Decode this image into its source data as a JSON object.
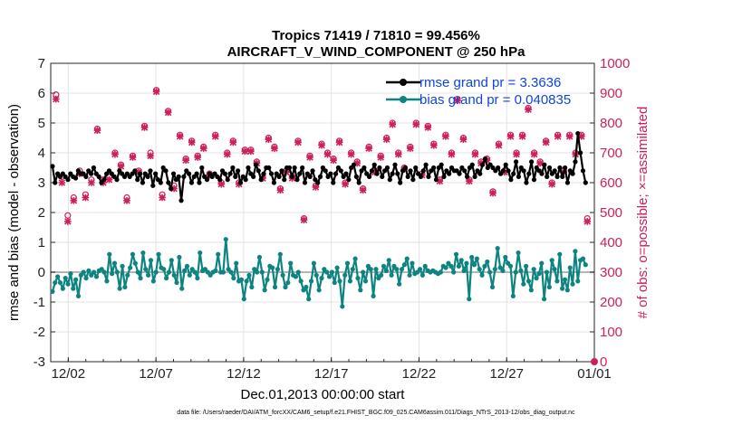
{
  "chart_data": {
    "type": "line",
    "title": "Tropics 71419 / 71810 = 99.456%",
    "subtitle": "AIRCRAFT_V_WIND_COMPONENT @ 250 hPa",
    "xlabel": "Dec.01,2013 00:00:00 start",
    "ylabel": "rmse and bias (model - observation)",
    "y2label": "# of obs: o=possible; ×=assimilated",
    "xlim": [
      0,
      31
    ],
    "ylim": [
      -3,
      7
    ],
    "y2lim": [
      0,
      1000
    ],
    "grid": true,
    "legend_position": "top-right",
    "x_ticks": [
      {
        "x": 1,
        "label": "12/02"
      },
      {
        "x": 6,
        "label": "12/07"
      },
      {
        "x": 11,
        "label": "12/12"
      },
      {
        "x": 16,
        "label": "12/17"
      },
      {
        "x": 21,
        "label": "12/22"
      },
      {
        "x": 26,
        "label": "12/27"
      },
      {
        "x": 31,
        "label": "01/01"
      }
    ],
    "y_ticks": [
      "-3",
      "-2",
      "-1",
      "0",
      "1",
      "2",
      "3",
      "4",
      "5",
      "6",
      "7"
    ],
    "y2_ticks": [
      "0",
      "100",
      "200",
      "300",
      "400",
      "500",
      "600",
      "700",
      "800",
      "900",
      "1000"
    ],
    "series": [
      {
        "name": "rmse grand pr = 3.3636",
        "color": "#000000",
        "values": [
          3.55,
          3.0,
          3.3,
          3.2,
          3.3,
          3.2,
          3.1,
          3.3,
          3.2,
          3.15,
          3.4,
          3.3,
          3.3,
          3.2,
          3.4,
          3.3,
          3.5,
          3.3,
          3.2,
          3.0,
          3.1,
          3.3,
          3.4,
          3.3,
          3.2,
          3.1,
          3.4,
          3.3,
          3.2,
          3.3,
          3.2,
          3.3,
          3.4,
          3.1,
          3.3,
          3.0,
          3.3,
          3.2,
          3.4,
          2.9,
          3.3,
          3.1,
          3.0,
          3.5,
          3.4,
          3.0,
          2.8,
          3.3,
          3.1,
          3.2,
          2.4,
          3.2,
          3.4,
          3.3,
          3.0,
          3.2,
          3.3,
          3.0,
          3.5,
          3.2,
          3.1,
          3.3,
          3.2,
          3.3,
          3.2,
          3.1,
          3.4,
          3.3,
          3.1,
          3.3,
          3.5,
          3.2,
          3.4,
          3.0,
          3.2,
          3.1,
          3.5,
          3.3,
          3.2,
          3.6,
          3.4,
          3.1,
          3.3,
          3.5,
          3.5,
          3.3,
          3.0,
          3.3,
          3.2,
          3.4,
          3.1,
          3.5,
          3.5,
          3.2,
          3.5,
          3.1,
          3.3,
          3.5,
          3.0,
          3.3,
          3.2,
          3.4,
          3.1,
          3.0,
          3.2,
          3.5,
          3.4,
          3.2,
          3.3,
          3.0,
          3.3,
          3.5,
          3.4,
          3.2,
          3.3,
          3.1,
          3.5,
          3.6,
          3.2,
          3.0,
          3.4,
          3.5,
          3.3,
          3.2,
          3.4,
          3.6,
          3.3,
          3.5,
          3.2,
          3.4,
          3.5,
          3.1,
          3.3,
          3.6,
          3.3,
          3.0,
          3.4,
          3.5,
          3.2,
          3.4,
          3.1,
          3.5,
          3.3,
          3.2,
          3.4,
          3.6,
          3.2,
          3.4,
          3.5,
          3.1,
          3.5,
          3.6,
          3.2,
          3.4,
          3.3,
          3.5,
          3.4,
          3.4,
          3.3,
          3.5,
          3.4,
          3.2,
          3.5,
          3.6,
          3.2,
          3.4,
          3.3,
          3.6,
          3.8,
          3.5,
          3.6,
          3.5,
          3.4,
          3.5,
          3.3,
          3.4,
          3.6,
          3.4,
          3.1,
          3.3,
          3.7,
          3.2,
          3.5,
          3.4,
          3.0,
          3.3,
          3.7,
          3.1,
          3.5,
          3.4,
          3.3,
          3.6,
          3.2,
          3.5,
          3.3,
          3.4,
          3.2,
          3.5,
          3.2,
          3.5,
          3.0,
          3.4,
          3.3,
          3.7,
          4.65,
          4.0,
          3.4,
          3.0
        ]
      },
      {
        "name": "bias grand pr = 0.040835",
        "color": "#0e8481",
        "values": [
          -0.65,
          -0.35,
          -0.15,
          -0.35,
          -0.55,
          -0.2,
          -0.4,
          -0.05,
          -0.55,
          -0.25,
          -0.8,
          -0.1,
          0.0,
          -0.2,
          0.05,
          -0.1,
          0.0,
          -0.15,
          0.05,
          0.1,
          0.0,
          -0.3,
          0.6,
          -0.05,
          0.3,
          0.0,
          -0.55,
          0.2,
          -0.5,
          -0.1,
          0.15,
          0.6,
          0.3,
          0.0,
          -0.2,
          0.65,
          0.1,
          -0.1,
          0.4,
          -0.3,
          0.0,
          0.6,
          0.15,
          0.1,
          -0.2,
          0.0,
          0.4,
          -0.1,
          -0.35,
          0.5,
          -0.55,
          0.05,
          0.2,
          -0.1,
          0.1,
          0.0,
          -0.2,
          0.65,
          0.05,
          0.1,
          0.0,
          -0.1,
          0.0,
          0.05,
          0.6,
          0.0,
          0.0,
          1.1,
          0.1,
          0.0,
          -0.2,
          0.3,
          -0.3,
          -0.25,
          -0.9,
          -0.3,
          -0.1,
          -0.5,
          0.1,
          0.0,
          0.5,
          0.0,
          -0.6,
          -0.25,
          0.2,
          0.15,
          -0.5,
          0.1,
          0.6,
          -0.1,
          -0.5,
          -0.35,
          0.3,
          -0.1,
          -0.15,
          0.0,
          -0.3,
          -0.6,
          -0.5,
          -0.9,
          -0.3,
          0.3,
          -0.1,
          -0.6,
          -0.2,
          0.1,
          0.0,
          -0.15,
          0.0,
          -0.35,
          0.15,
          -0.3,
          -1.15,
          -0.1,
          0.3,
          -0.3,
          0.1,
          0.45,
          -0.2,
          -0.6,
          0.0,
          -0.3,
          0.2,
          0.1,
          -0.8,
          0.1,
          -0.2,
          -0.1,
          0.2,
          0.05,
          0.4,
          -0.1,
          0.2,
          0.1,
          -0.4,
          0.1,
          0.25,
          0.45,
          -0.1,
          0.3,
          -0.05,
          0.0,
          0.1,
          -0.1,
          0.2,
          0.05,
          0.0,
          0.05,
          0.0,
          -0.05,
          0.0,
          0.2,
          0.15,
          0.3,
          0.2,
          0.0,
          0.6,
          0.2,
          0.4,
          0.05,
          0.3,
          -0.9,
          0.5,
          0.25,
          0.45,
          0.1,
          -0.1,
          0.2,
          0.35,
          0.0,
          -0.5,
          0.1,
          0.8,
          0.15,
          0.05,
          0.5,
          0.3,
          0.2,
          -0.8,
          0.0,
          0.65,
          0.05,
          -0.4,
          0.2,
          -0.3,
          -0.6,
          0.1,
          -0.2,
          -0.05,
          0.3,
          -0.9,
          0.0,
          -0.5,
          0.4,
          0.1,
          -0.3,
          0.6,
          -0.55,
          -0.25,
          -0.6,
          0.15,
          -0.4,
          0.7,
          -0.3,
          0.4,
          0.45,
          0.25
        ]
      },
      {
        "name": "obs possible",
        "color": "#cc1f5c",
        "values": [
          895,
          620,
          490,
          550,
          640,
          560,
          610,
          780,
          610,
          620,
          700,
          660,
          550,
          690,
          640,
          790,
          700,
          910,
          560,
          840,
          590,
          760,
          680,
          740,
          690,
          720,
          630,
          760,
          600,
          700,
          740,
          600,
          710,
          710,
          670,
          620,
          750,
          720,
          580,
          640,
          620,
          740,
          480,
          690,
          590,
          730,
          700,
          680,
          740,
          600,
          700,
          670,
          580,
          720,
          640,
          690,
          750,
          800,
          700,
          650,
          720,
          800,
          630,
          790,
          730,
          610,
          760,
          700,
          880,
          750,
          610,
          700,
          670,
          680,
          570,
          730,
          640,
          760,
          700,
          760,
          850,
          700,
          670,
          740,
          600,
          760,
          640,
          760,
          700,
          760,
          480
        ]
      },
      {
        "name": "obs assimilated",
        "color": "#cc1f5c",
        "values": [
          880,
          600,
          470,
          540,
          630,
          550,
          600,
          775,
          600,
          610,
          695,
          655,
          540,
          685,
          635,
          785,
          690,
          905,
          550,
          835,
          580,
          755,
          675,
          735,
          685,
          715,
          625,
          755,
          595,
          695,
          735,
          595,
          705,
          705,
          665,
          615,
          745,
          715,
          575,
          635,
          615,
          735,
          475,
          685,
          585,
          725,
          695,
          675,
          735,
          595,
          695,
          665,
          575,
          715,
          635,
          685,
          745,
          795,
          695,
          645,
          715,
          795,
          625,
          785,
          725,
          605,
          755,
          695,
          875,
          745,
          605,
          695,
          665,
          675,
          565,
          725,
          635,
          755,
          695,
          755,
          845,
          695,
          665,
          735,
          595,
          755,
          635,
          755,
          695,
          755,
          470
        ]
      }
    ],
    "footnote": "data file: /Users/raeder/DAI/ATM_forcXX/CAM6_setup/f.e21.FHIST_BGC.f09_025.CAM6assim.011/Diags_NTrS_2013-12/obs_diag_output.nc"
  }
}
